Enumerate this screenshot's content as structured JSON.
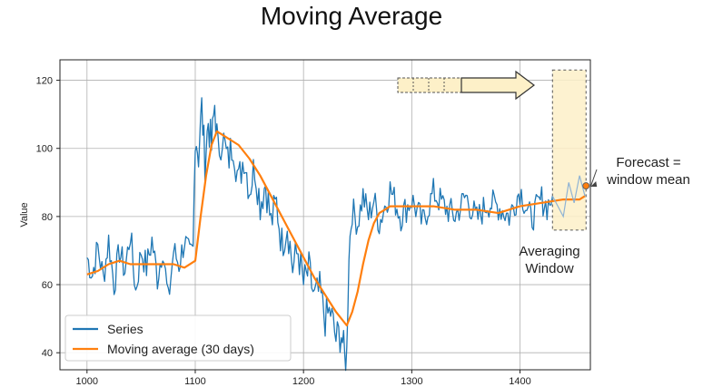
{
  "title": "Moving Average",
  "chart_data": {
    "type": "line",
    "title": "Moving Average",
    "xlabel": "",
    "ylabel": "Value",
    "xlim": [
      975,
      1465
    ],
    "ylim": [
      35,
      126
    ],
    "xticks": [
      1000,
      1100,
      1200,
      1300,
      1400
    ],
    "yticks": [
      40,
      60,
      80,
      100,
      120
    ],
    "grid": true,
    "legend_position": "bottom-left",
    "series": [
      {
        "name": "Series",
        "color": "#1f77b4",
        "x": [
          1000,
          1005,
          1010,
          1015,
          1020,
          1025,
          1030,
          1035,
          1040,
          1045,
          1050,
          1055,
          1060,
          1065,
          1070,
          1075,
          1080,
          1085,
          1090,
          1095,
          1098,
          1100,
          1103,
          1106,
          1109,
          1112,
          1115,
          1118,
          1121,
          1125,
          1130,
          1135,
          1140,
          1145,
          1150,
          1155,
          1160,
          1165,
          1170,
          1175,
          1180,
          1185,
          1190,
          1195,
          1200,
          1205,
          1210,
          1215,
          1220,
          1225,
          1230,
          1235,
          1238,
          1240,
          1242,
          1245,
          1250,
          1255,
          1260,
          1265,
          1270,
          1280,
          1290,
          1300,
          1310,
          1320,
          1330,
          1340,
          1350,
          1360,
          1370,
          1380,
          1390,
          1400,
          1410,
          1420,
          1425,
          1430
        ],
        "y": [
          68,
          63,
          71,
          62,
          73,
          60,
          70,
          64,
          75,
          58,
          70,
          65,
          73,
          62,
          71,
          55,
          70,
          66,
          73,
          68,
          70,
          105,
          98,
          112,
          96,
          108,
          100,
          113,
          99,
          104,
          96,
          102,
          90,
          98,
          88,
          95,
          84,
          90,
          78,
          84,
          72,
          78,
          65,
          70,
          60,
          64,
          56,
          58,
          50,
          52,
          44,
          46,
          38,
          40,
          70,
          82,
          78,
          86,
          80,
          85,
          78,
          88,
          80,
          85,
          78,
          87,
          83,
          80,
          86,
          79,
          84,
          83,
          80,
          88,
          79,
          85,
          83,
          86
        ],
        "x_style": "noisy"
      },
      {
        "name": "Moving average (30 days)",
        "color": "#ff7f0e",
        "x": [
          1000,
          1010,
          1020,
          1030,
          1040,
          1050,
          1060,
          1070,
          1080,
          1090,
          1100,
          1105,
          1110,
          1115,
          1120,
          1125,
          1130,
          1140,
          1150,
          1160,
          1170,
          1180,
          1190,
          1200,
          1210,
          1220,
          1230,
          1240,
          1245,
          1250,
          1255,
          1260,
          1265,
          1270,
          1275,
          1280,
          1290,
          1300,
          1320,
          1340,
          1360,
          1380,
          1400,
          1420,
          1440,
          1450,
          1455,
          1460
        ],
        "y": [
          63,
          64,
          66,
          67,
          66,
          66,
          66,
          66,
          66,
          65,
          67,
          80,
          92,
          101,
          105,
          104,
          103,
          101,
          97,
          92,
          86,
          80,
          74,
          68,
          62,
          57,
          52,
          48,
          52,
          58,
          66,
          73,
          78,
          81,
          82,
          83,
          83,
          83,
          83,
          82,
          82,
          81,
          83,
          84,
          85,
          85,
          85,
          86
        ]
      }
    ],
    "annotations": [
      {
        "text": "Forecast =\nwindow mean",
        "x": 1460,
        "y": 89
      },
      {
        "text": "Averaging\nWindow",
        "x": 1445,
        "y": 60
      }
    ],
    "window": {
      "x_start": 1430,
      "x_end": 1461,
      "y_bottom": 76,
      "y_top": 123,
      "color": "#fdf0c8"
    },
    "forecast_point": {
      "x": 1461,
      "y": 89,
      "color": "#ff7f0e"
    }
  }
}
